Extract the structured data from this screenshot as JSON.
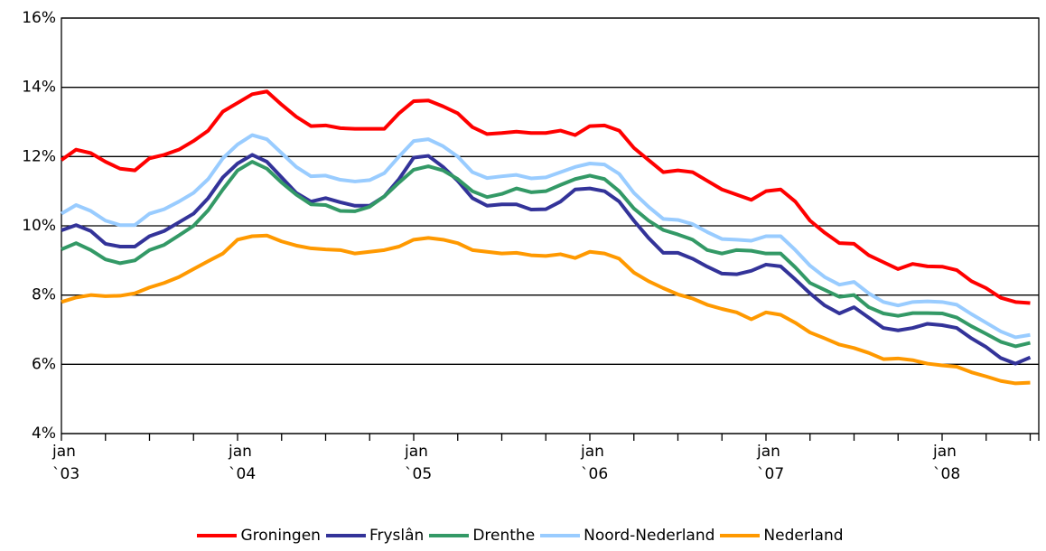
{
  "chart_data": {
    "type": "line",
    "categories": [
      "jan `03",
      null,
      null,
      null,
      null,
      null,
      null,
      null,
      null,
      null,
      null,
      null,
      "jan `04",
      null,
      null,
      null,
      null,
      null,
      null,
      null,
      null,
      null,
      null,
      null,
      "jan `05",
      null,
      null,
      null,
      null,
      null,
      null,
      null,
      null,
      null,
      null,
      null,
      "jan `06",
      null,
      null,
      null,
      null,
      null,
      null,
      null,
      null,
      null,
      null,
      null,
      "jan `07",
      null,
      null,
      null,
      null,
      null,
      null,
      null,
      null,
      null,
      null,
      null,
      "jan `08",
      null,
      null,
      null,
      null,
      null,
      null
    ],
    "ylim": [
      4,
      16
    ],
    "yticks": [
      {
        "value": 4,
        "label": "4%"
      },
      {
        "value": 6,
        "label": "6%"
      },
      {
        "value": 8,
        "label": "8%"
      },
      {
        "value": 10,
        "label": "10%"
      },
      {
        "value": 12,
        "label": "12%"
      },
      {
        "value": 14,
        "label": "14%"
      },
      {
        "value": 16,
        "label": "16%"
      }
    ],
    "grid": true,
    "legend": "bottom",
    "series": [
      {
        "name": "Groningen",
        "color": "#ff0000",
        "values": [
          11.9,
          12.2,
          12.1,
          11.85,
          11.65,
          11.6,
          11.95,
          12.05,
          12.2,
          12.45,
          12.75,
          13.3,
          13.55,
          13.8,
          13.88,
          13.5,
          13.15,
          12.88,
          12.9,
          12.82,
          12.8,
          12.8,
          12.8,
          13.25,
          13.6,
          13.62,
          13.45,
          13.25,
          12.85,
          12.65,
          12.68,
          12.72,
          12.68,
          12.68,
          12.75,
          12.62,
          12.88,
          12.9,
          12.75,
          12.25,
          11.9,
          11.55,
          11.6,
          11.55,
          11.3,
          11.05,
          10.9,
          10.75,
          11.0,
          11.05,
          10.7,
          10.15,
          9.8,
          9.5,
          9.48,
          9.15,
          8.95,
          8.75,
          8.9,
          8.83,
          8.82,
          8.72,
          8.4,
          8.2,
          7.92,
          7.8,
          7.77
        ]
      },
      {
        "name": "Fryslân",
        "color": "#333399",
        "values": [
          9.87,
          10.02,
          9.85,
          9.48,
          9.4,
          9.4,
          9.7,
          9.85,
          10.1,
          10.35,
          10.8,
          11.4,
          11.8,
          12.05,
          11.85,
          11.4,
          10.95,
          10.7,
          10.8,
          10.68,
          10.58,
          10.58,
          10.85,
          11.35,
          11.97,
          12.02,
          11.7,
          11.3,
          10.8,
          10.58,
          10.62,
          10.62,
          10.47,
          10.48,
          10.7,
          11.05,
          11.08,
          11.0,
          10.7,
          10.15,
          9.65,
          9.22,
          9.22,
          9.05,
          8.82,
          8.62,
          8.6,
          8.7,
          8.88,
          8.83,
          8.45,
          8.05,
          7.7,
          7.47,
          7.65,
          7.35,
          7.05,
          6.98,
          7.05,
          7.17,
          7.13,
          7.05,
          6.75,
          6.5,
          6.18,
          6.02,
          6.2
        ]
      },
      {
        "name": "Drenthe",
        "color": "#339966",
        "values": [
          9.32,
          9.5,
          9.3,
          9.03,
          8.92,
          9.0,
          9.3,
          9.45,
          9.72,
          10.0,
          10.45,
          11.05,
          11.6,
          11.85,
          11.65,
          11.25,
          10.9,
          10.62,
          10.6,
          10.43,
          10.42,
          10.55,
          10.85,
          11.25,
          11.62,
          11.72,
          11.6,
          11.35,
          11.0,
          10.83,
          10.92,
          11.08,
          10.97,
          11.0,
          11.18,
          11.35,
          11.45,
          11.35,
          11.0,
          10.5,
          10.15,
          9.88,
          9.75,
          9.6,
          9.3,
          9.2,
          9.3,
          9.28,
          9.2,
          9.2,
          8.8,
          8.35,
          8.15,
          7.95,
          8.0,
          7.65,
          7.47,
          7.4,
          7.48,
          7.48,
          7.47,
          7.35,
          7.1,
          6.88,
          6.65,
          6.52,
          6.62
        ]
      },
      {
        "name": "Noord-Nederland",
        "color": "#99ccff",
        "values": [
          10.35,
          10.6,
          10.43,
          10.15,
          10.02,
          10.02,
          10.35,
          10.48,
          10.7,
          10.95,
          11.35,
          11.95,
          12.35,
          12.62,
          12.5,
          12.1,
          11.7,
          11.43,
          11.45,
          11.33,
          11.28,
          11.32,
          11.52,
          12.0,
          12.45,
          12.5,
          12.3,
          12.0,
          11.55,
          11.38,
          11.43,
          11.47,
          11.37,
          11.4,
          11.55,
          11.7,
          11.8,
          11.77,
          11.5,
          10.95,
          10.55,
          10.2,
          10.17,
          10.05,
          9.82,
          9.62,
          9.6,
          9.57,
          9.7,
          9.7,
          9.3,
          8.85,
          8.52,
          8.3,
          8.38,
          8.05,
          7.8,
          7.7,
          7.8,
          7.82,
          7.8,
          7.72,
          7.45,
          7.2,
          6.95,
          6.78,
          6.85
        ]
      },
      {
        "name": "Nederland",
        "color": "#ff9900",
        "values": [
          7.8,
          7.93,
          8.0,
          7.97,
          7.98,
          8.05,
          8.22,
          8.35,
          8.52,
          8.75,
          8.98,
          9.2,
          9.6,
          9.7,
          9.72,
          9.55,
          9.43,
          9.35,
          9.32,
          9.3,
          9.2,
          9.25,
          9.3,
          9.4,
          9.6,
          9.65,
          9.6,
          9.5,
          9.3,
          9.25,
          9.2,
          9.22,
          9.15,
          9.13,
          9.18,
          9.07,
          9.25,
          9.2,
          9.05,
          8.65,
          8.4,
          8.2,
          8.02,
          7.9,
          7.72,
          7.6,
          7.5,
          7.3,
          7.5,
          7.43,
          7.2,
          6.92,
          6.75,
          6.57,
          6.47,
          6.33,
          6.15,
          6.17,
          6.12,
          6.02,
          5.97,
          5.93,
          5.77,
          5.65,
          5.52,
          5.45,
          5.47
        ]
      }
    ]
  }
}
